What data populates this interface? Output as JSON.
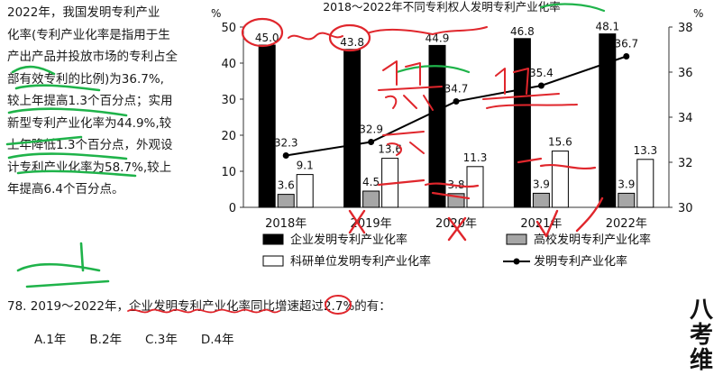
{
  "passage": {
    "lines": [
      "2022年，我国发明专利产业",
      "化率(专利产业化率是指用于生",
      "产出产品并投放市场的专利占全",
      "部有效专利的比例)为36.7%,",
      "较上年提高1.3个百分点；实用",
      "新型专利产业化率为44.9%,较",
      "上年降低1.3个百分点，外观设",
      "计专利产业化率为58.7%,较上",
      "年提高6.4个百分点。"
    ]
  },
  "question": {
    "stem": "78. 2019～2022年，企业发明专利产业化率同比增速超过2.7%的有：",
    "options": [
      "A.1年",
      "B.2年",
      "C.3年",
      "D.4年"
    ]
  },
  "brand": {
    "text": "八考维"
  },
  "chart_data": {
    "type": "bar",
    "title": "2018～2022年不同专利权人发明专利产业化率",
    "y_left_unit": "%",
    "y_right_unit": "%",
    "categories": [
      "2018年",
      "2019年",
      "2020年",
      "2021年",
      "2022年"
    ],
    "ylim_left": [
      0,
      50
    ],
    "yticks_left": [
      0,
      10,
      20,
      30,
      40,
      50
    ],
    "ylim_right": [
      30,
      38
    ],
    "yticks_right": [
      30,
      32,
      34,
      36,
      38
    ],
    "series": [
      {
        "name": "企业发明专利产业化率",
        "kind": "bar",
        "axis": "left",
        "color": "#000000",
        "values": [
          45.0,
          43.8,
          44.9,
          46.8,
          48.1
        ],
        "labels": [
          "45.0",
          "43.8",
          "44.9",
          "46.8",
          "48.1"
        ]
      },
      {
        "name": "高校发明专利产业化率",
        "kind": "bar",
        "axis": "left",
        "color": "#a6a6a6",
        "values": [
          3.6,
          4.5,
          3.8,
          3.9,
          3.9
        ],
        "labels": [
          "3.6",
          "4.5",
          "3.8",
          "3.9",
          "3.9"
        ]
      },
      {
        "name": "科研单位发明专利产业化率",
        "kind": "bar",
        "axis": "left",
        "color": "#ffffff",
        "values": [
          9.1,
          13.6,
          11.3,
          15.6,
          13.3
        ],
        "labels": [
          "9.1",
          "13.6",
          "11.3",
          "15.6",
          "13.3"
        ]
      },
      {
        "name": "发明专利产业化率",
        "kind": "line",
        "axis": "right",
        "color": "#000000",
        "values": [
          32.3,
          32.9,
          34.7,
          35.4,
          36.7
        ],
        "labels": [
          "32.3",
          "32.9",
          "34.7",
          "35.4",
          "36.7"
        ]
      }
    ],
    "legend_position": "bottom",
    "grid": false
  }
}
